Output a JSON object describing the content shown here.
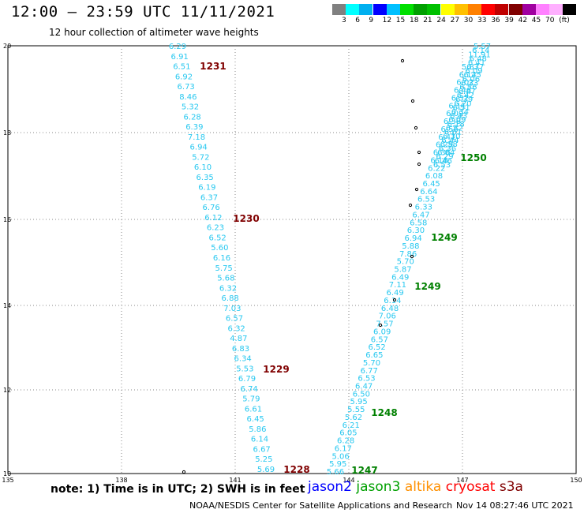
{
  "header": {
    "title": "12:00 — 23:59 UTC 11/11/2021",
    "subtitle": "12 hour collection of altimeter wave heights"
  },
  "scale": {
    "colors": [
      "#808080",
      "#00ffff",
      "#00b0f0",
      "#0000ff",
      "#00c0ff",
      "#00e000",
      "#00a000",
      "#00c000",
      "#ffff00",
      "#ffc000",
      "#ff8000",
      "#ff0000",
      "#c00000",
      "#800000",
      "#a000a0",
      "#ff80ff",
      "#ffb0ff",
      "#000000"
    ],
    "labels": [
      "3",
      "6",
      "9",
      "12",
      "15",
      "18",
      "21",
      "24",
      "27",
      "30",
      "33",
      "36",
      "39",
      "42",
      "45",
      "70",
      "(ft)"
    ]
  },
  "axes": {
    "x_labels": [
      "135",
      "138",
      "141",
      "144",
      "147",
      "150"
    ],
    "y_labels": [
      "20",
      "18",
      "16",
      "14",
      "12",
      "10"
    ]
  },
  "tracks": [
    {
      "color": "#28c8f0",
      "values": [
        "6.29",
        "6.91",
        "6.51",
        "6.92",
        "6.73",
        "8.46",
        "5.32",
        "6.28",
        "6.39",
        "7.18",
        "6.94",
        "5.72",
        "6.10",
        "6.35",
        "6.19",
        "6.37",
        "6.76",
        "6.12",
        "6.23",
        "6.52",
        "5.60",
        "6.16",
        "5.75",
        "5.68",
        "6.32",
        "6.88",
        "7.03",
        "6.57",
        "6.32",
        "4.87",
        "6.83",
        "6.34",
        "5.53",
        "6.79",
        "6.74",
        "5.79",
        "6.61",
        "6.45",
        "5.86",
        "6.14",
        "6.67",
        "5.25",
        "5.69"
      ]
    },
    {
      "color": "#28c8f0",
      "values": [
        "5.66",
        "5.95",
        "5.06",
        "6.17",
        "6.28",
        "6.05",
        "6.21",
        "5.62",
        "5.55",
        "5.95",
        "6.50",
        "6.47",
        "6.53",
        "6.77",
        "5.70",
        "6.65",
        "6.52",
        "6.57",
        "6.09",
        "7.57",
        "7.06",
        "6.48",
        "6.14",
        "6.49",
        "7.11",
        "6.49",
        "5.87",
        "5.70",
        "7.86",
        "5.88",
        "6.94",
        "6.30",
        "6.58",
        "6.47",
        "6.33",
        "6.53",
        "6.64",
        "6.45",
        "6.08",
        "6.22",
        "6.18",
        "6.36",
        "6.29",
        "6.41",
        "6.56",
        "6.38",
        "6.09",
        "6.11",
        "6.32",
        "6.46",
        "6.02",
        "6.14",
        "5.87"
      ]
    },
    {
      "color": "#28c8f0",
      "values": [
        "5.57",
        "6.14",
        "11.91",
        "6.48",
        "6.41",
        "6.37",
        "6.09",
        "6.25",
        "6.06",
        "6.33",
        "6.56",
        "6.47",
        "6.42",
        "6.39",
        "6.20",
        "6.51",
        "6.34",
        "6.43",
        "6.09",
        "6.18",
        "6.52",
        "6.61",
        "6.30",
        "6.44",
        "6.58",
        "6.36",
        "6.04",
        "6.29",
        "6.46",
        "6.53"
      ]
    }
  ],
  "time_labels": [
    {
      "text": "1231",
      "color": "#800000"
    },
    {
      "text": "1230",
      "color": "#800000"
    },
    {
      "text": "1229",
      "color": "#800000"
    },
    {
      "text": "1228",
      "color": "#800000"
    },
    {
      "text": "1250",
      "color": "#008000"
    },
    {
      "text": "1249",
      "color": "#008000"
    },
    {
      "text": "1249",
      "color": "#008000"
    },
    {
      "text": "1248",
      "color": "#008000"
    },
    {
      "text": "1247",
      "color": "#008000"
    }
  ],
  "footer": {
    "note": "note:  1) Time is in UTC;  2) SWH is in feet",
    "legend": [
      {
        "text": "jason2",
        "color": "#0000ff"
      },
      {
        "text": "jason3",
        "color": "#00a000"
      },
      {
        "text": "altika",
        "color": "#ff9000"
      },
      {
        "text": "cryosat",
        "color": "#ff0000"
      },
      {
        "text": "s3a",
        "color": "#800000"
      }
    ],
    "credit": "NOAA/NESDIS Center for Satellite Applications and Research",
    "timestamp": "Nov 14 08:27:46 UTC 2021"
  }
}
